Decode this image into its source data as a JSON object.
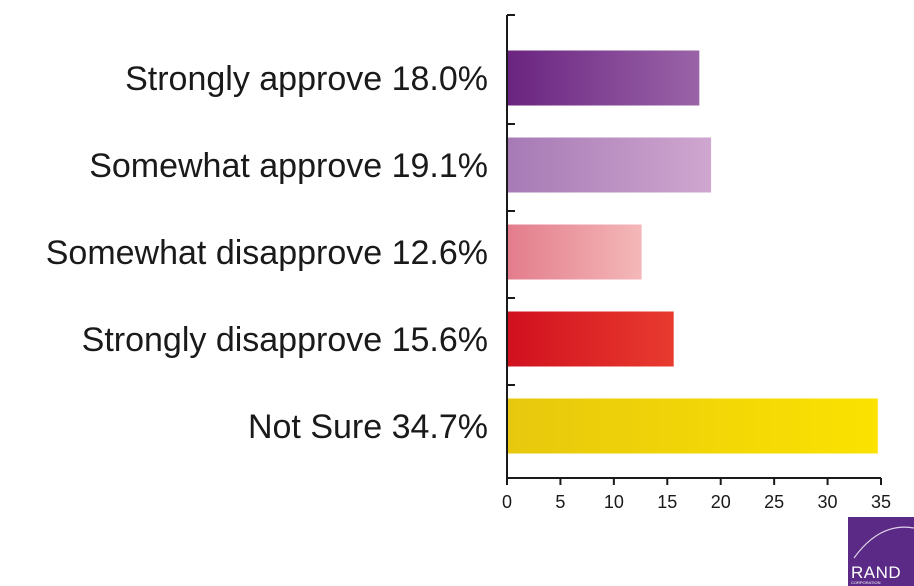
{
  "chart_data": {
    "type": "bar",
    "orientation": "horizontal",
    "categories": [
      "Strongly approve 18.0%",
      "Somewhat approve 19.1%",
      "Somewhat disapprove 12.6%",
      "Strongly disapprove 15.6%",
      "Not Sure 34.7%"
    ],
    "values": [
      18.0,
      19.1,
      12.6,
      15.6,
      34.7
    ],
    "bar_colors": [
      [
        "#6a2480",
        "#9a64a8"
      ],
      [
        "#a67ab5",
        "#cfa6cf"
      ],
      [
        "#e37c8c",
        "#f4b8b8"
      ],
      [
        "#d1101e",
        "#e83b2f"
      ],
      [
        "#e8c80e",
        "#fbe200"
      ]
    ],
    "xlim": [
      0,
      35
    ],
    "xticks": [
      "0",
      "5",
      "10",
      "15",
      "20",
      "25",
      "30",
      "35"
    ],
    "title": "",
    "xlabel": "",
    "ylabel": "",
    "grid": false,
    "legend": "none"
  },
  "logo": {
    "text": "RAND",
    "subtext": "CORPORATION",
    "color": "#5b2a86"
  }
}
